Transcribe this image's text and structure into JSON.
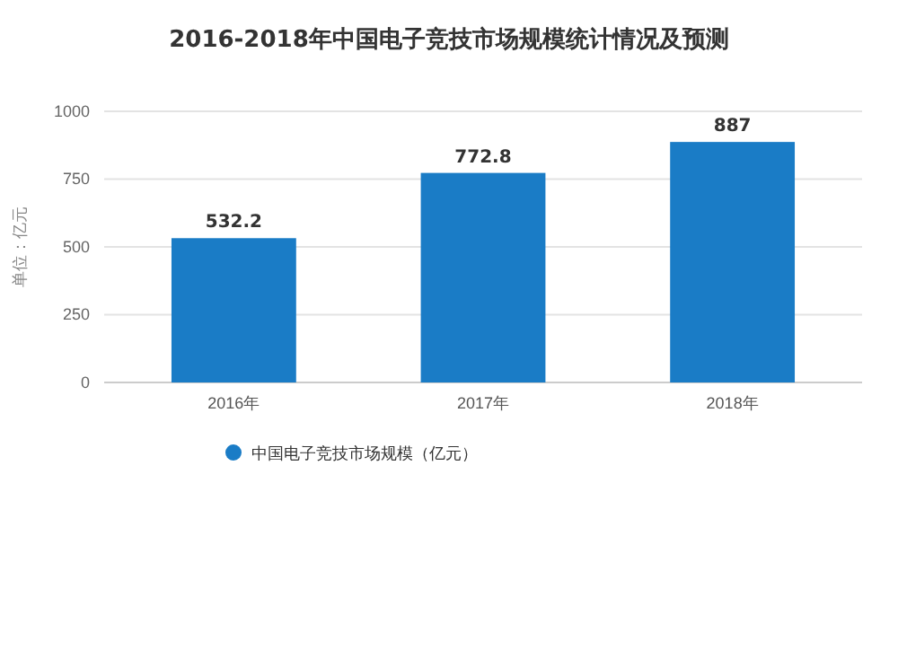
{
  "chart_data": {
    "type": "bar",
    "title": "2016-2018年中国电子竞技市场规模统计情况及预测",
    "ylabel": "单位：亿元",
    "categories": [
      "2016年",
      "2017年",
      "2018年"
    ],
    "series": [
      {
        "name": "中国电子竞技市场规模（亿元）",
        "color": "#1a7cc6",
        "values": [
          532.2,
          772.8,
          887
        ]
      }
    ],
    "ylim": [
      0,
      1000
    ],
    "yticks": [
      0,
      250,
      500,
      750,
      1000
    ],
    "grid": "y",
    "legend": "bottom left",
    "data_labels": true
  }
}
